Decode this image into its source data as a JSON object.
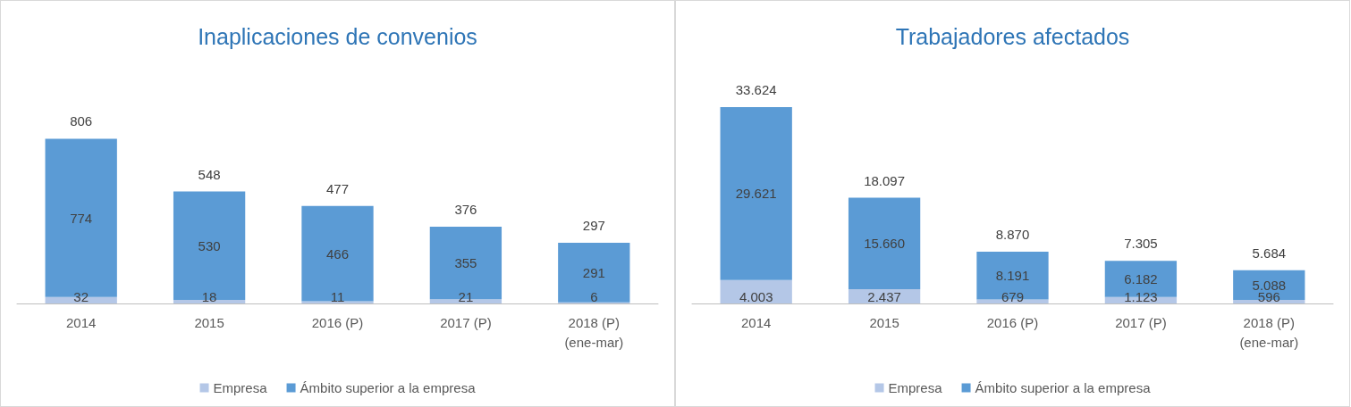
{
  "chart_data": [
    {
      "type": "bar",
      "title": "Inaplicaciones de convenios",
      "categories": [
        "2014",
        "2015",
        "2016 (P)",
        "2017 (P)",
        "2018 (P)\n(ene-mar)"
      ],
      "stacked": true,
      "data_labels": true,
      "legend": "bottom",
      "grid": false,
      "series": [
        {
          "name": "Empresa",
          "color": "#b4c7e7",
          "values": [
            32,
            18,
            11,
            21,
            6
          ]
        },
        {
          "name": "Ámbito superior a la empresa",
          "color": "#5b9bd5",
          "values": [
            774,
            530,
            466,
            355,
            291
          ]
        }
      ],
      "totals": [
        "806",
        "548",
        "477",
        "376",
        "297"
      ]
    },
    {
      "type": "bar",
      "title": "Trabajadores afectados",
      "categories": [
        "2014",
        "2015",
        "2016 (P)",
        "2017 (P)",
        "2018 (P)\n(ene-mar)"
      ],
      "stacked": true,
      "legend": "bottom",
      "grid": false,
      "series": [
        {
          "name": "Empresa",
          "color": "#b4c7e7",
          "values": [
            4003,
            2437,
            679,
            1123,
            596
          ],
          "value_labels": [
            "4.003",
            "2.437",
            "679",
            "1.123",
            "596"
          ]
        },
        {
          "name": "Ámbito superior a la empresa",
          "color": "#5b9bd5",
          "values": [
            29621,
            15660,
            8191,
            6182,
            5088
          ],
          "value_labels": [
            "29.621",
            "15.660",
            "8.191",
            "6.182",
            "5.088"
          ]
        }
      ],
      "totals": [
        "33.624",
        "18.097",
        "8.870",
        "7.305",
        "5.684"
      ]
    }
  ]
}
